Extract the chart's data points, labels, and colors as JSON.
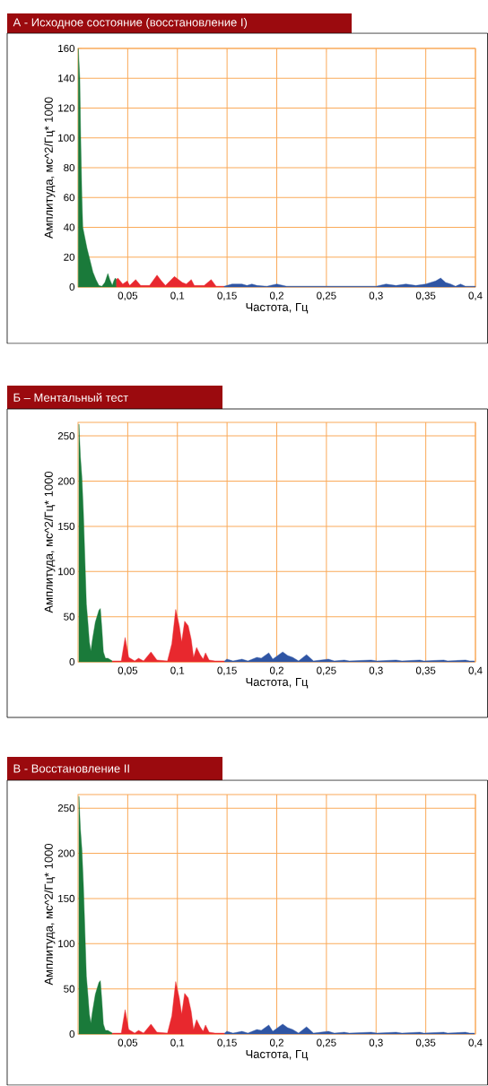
{
  "chart_data": [
    {
      "type": "area",
      "title": "А - Исходное состояние (восстановление I)",
      "xlabel": "Частота, Гц",
      "ylabel": "Амплитуда, мс^2/Гц* 1000",
      "xlim": [
        0,
        0.4
      ],
      "ylim": [
        0,
        160
      ],
      "grid": true,
      "xticks": [
        {
          "value": 0.05,
          "label": "0,05"
        },
        {
          "value": 0.1,
          "label": "0,1"
        },
        {
          "value": 0.15,
          "label": "0,15"
        },
        {
          "value": 0.2,
          "label": "0,2"
        },
        {
          "value": 0.25,
          "label": "0,25"
        },
        {
          "value": 0.3,
          "label": "0,3"
        },
        {
          "value": 0.35,
          "label": "0,35"
        },
        {
          "value": 0.4,
          "label": "0,4"
        }
      ],
      "yticks": [
        0,
        20,
        40,
        60,
        80,
        100,
        120,
        140,
        160
      ],
      "series": [
        {
          "color": "#1a7a3a",
          "x": [
            0.0003,
            0.0018,
            0.0027,
            0.0039,
            0.0048,
            0.0066,
            0.009,
            0.012,
            0.015,
            0.018,
            0.021,
            0.024,
            0.027,
            0.03,
            0.032,
            0.0345,
            0.036,
            0.0375,
            0.0387
          ],
          "values": [
            160,
            140,
            100,
            60,
            40,
            34,
            26,
            18,
            10,
            5,
            1,
            0.5,
            3,
            9,
            5,
            1,
            4,
            6,
            5
          ]
        },
        {
          "color": "#e8282e",
          "x": [
            0.0387,
            0.04,
            0.045,
            0.0495,
            0.052,
            0.058,
            0.063,
            0.072,
            0.0795,
            0.084,
            0.088,
            0.097,
            0.105,
            0.109,
            0.114,
            0.117,
            0.127,
            0.134,
            0.139,
            0.147
          ],
          "values": [
            5,
            6,
            2,
            4,
            1,
            5,
            1,
            1,
            8,
            4,
            1,
            7,
            3,
            2,
            5,
            1,
            1,
            5,
            0.5,
            0.5
          ]
        },
        {
          "color": "#2f55a4",
          "x": [
            0.147,
            0.15,
            0.155,
            0.165,
            0.17,
            0.175,
            0.18,
            0.19,
            0.2,
            0.21,
            0.3,
            0.31,
            0.32,
            0.33,
            0.34,
            0.35,
            0.36,
            0.365,
            0.37,
            0.375,
            0.38,
            0.385,
            0.39,
            0.4
          ],
          "values": [
            0.5,
            1,
            2,
            2,
            1,
            2,
            1,
            0.5,
            2,
            0.5,
            0.5,
            2,
            1,
            2,
            1,
            2,
            4,
            6,
            3,
            2,
            0.5,
            2,
            0.5,
            0.5
          ]
        }
      ]
    },
    {
      "type": "area",
      "title": "Б – Ментальный тест",
      "xlabel": "Частота, Гц",
      "ylabel": "Амплитуда, мс^2/Гц* 1000",
      "xlim": [
        0,
        0.4
      ],
      "ylim": [
        0,
        265
      ],
      "grid": true,
      "xticks": [
        {
          "value": 0.05,
          "label": "0,05"
        },
        {
          "value": 0.1,
          "label": "0,1"
        },
        {
          "value": 0.15,
          "label": "0,15"
        },
        {
          "value": 0.2,
          "label": "0,2"
        },
        {
          "value": 0.25,
          "label": "0,25"
        },
        {
          "value": 0.3,
          "label": "0,3"
        },
        {
          "value": 0.35,
          "label": "0,35"
        },
        {
          "value": 0.4,
          "label": "0,4"
        }
      ],
      "yticks": [
        0,
        50,
        100,
        150,
        200,
        250
      ],
      "series": [
        {
          "color": "#1a7a3a",
          "x": [
            0.0009,
            0.0024,
            0.0039,
            0.0054,
            0.0069,
            0.0084,
            0.0099,
            0.0114,
            0.0129,
            0.0144,
            0.0174,
            0.021,
            0.0225,
            0.024,
            0.0255,
            0.0276,
            0.03,
            0.033,
            0.0345
          ],
          "values": [
            263,
            227,
            204,
            166,
            115,
            64,
            44,
            22,
            12,
            24,
            44,
            57,
            59,
            37,
            11,
            4,
            4,
            2,
            1
          ]
        },
        {
          "color": "#e8282e",
          "x": [
            0.0345,
            0.0435,
            0.0474,
            0.051,
            0.057,
            0.0609,
            0.066,
            0.0734,
            0.0794,
            0.09,
            0.0944,
            0.0983,
            0.1019,
            0.1043,
            0.1073,
            0.1109,
            0.1139,
            0.1163,
            0.1193,
            0.1229,
            0.1259,
            0.1283,
            0.1319,
            0.1379,
            0.1475
          ],
          "values": [
            1,
            1,
            27,
            5,
            1,
            4,
            1,
            11,
            2,
            1,
            20,
            58,
            40,
            22,
            45,
            40,
            25,
            5,
            16,
            8,
            3,
            10,
            2,
            1,
            1
          ]
        },
        {
          "color": "#2f55a4",
          "x": [
            0.1475,
            0.1498,
            0.156,
            0.165,
            0.171,
            0.18,
            0.1844,
            0.192,
            0.196,
            0.206,
            0.211,
            0.216,
            0.222,
            0.23,
            0.237,
            0.252,
            0.258,
            0.268,
            0.273,
            0.295,
            0.301,
            0.32,
            0.326,
            0.344,
            0.348,
            0.368,
            0.372,
            0.39,
            0.394,
            0.399
          ],
          "values": [
            1,
            3,
            1,
            3,
            1,
            5,
            4,
            10,
            3,
            11,
            7,
            5,
            1,
            8,
            1,
            3,
            1,
            2,
            1,
            2,
            1,
            2,
            1,
            2,
            1,
            2,
            1,
            2,
            1,
            1
          ]
        }
      ]
    },
    {
      "type": "area",
      "title": "В - Восстановление II",
      "xlabel": "Частота, Гц",
      "ylabel": "Амплитуда, мс^2/Гц* 1000",
      "xlim": [
        0,
        0.4
      ],
      "ylim": [
        0,
        265
      ],
      "grid": true,
      "xticks": [
        {
          "value": 0.05,
          "label": "0,05"
        },
        {
          "value": 0.1,
          "label": "0,1"
        },
        {
          "value": 0.15,
          "label": "0,15"
        },
        {
          "value": 0.2,
          "label": "0,2"
        },
        {
          "value": 0.25,
          "label": "0,25"
        },
        {
          "value": 0.3,
          "label": "0,3"
        },
        {
          "value": 0.35,
          "label": "0,35"
        },
        {
          "value": 0.4,
          "label": "0,4"
        }
      ],
      "yticks": [
        0,
        50,
        100,
        150,
        200,
        250
      ],
      "series": [
        {
          "color": "#1a7a3a",
          "x": [
            0.0009,
            0.0024,
            0.0039,
            0.0054,
            0.0069,
            0.0084,
            0.0099,
            0.0114,
            0.0129,
            0.0144,
            0.0174,
            0.021,
            0.0225,
            0.024,
            0.0255,
            0.0276,
            0.03,
            0.033,
            0.0345
          ],
          "values": [
            263,
            227,
            204,
            166,
            115,
            64,
            44,
            22,
            12,
            24,
            44,
            57,
            59,
            37,
            11,
            4,
            4,
            2,
            1
          ]
        },
        {
          "color": "#e8282e",
          "x": [
            0.0345,
            0.0435,
            0.0474,
            0.051,
            0.057,
            0.0609,
            0.066,
            0.0734,
            0.0794,
            0.09,
            0.0944,
            0.0983,
            0.1019,
            0.1043,
            0.1073,
            0.1109,
            0.1139,
            0.1163,
            0.1193,
            0.1229,
            0.1259,
            0.1283,
            0.1319,
            0.1379,
            0.1475
          ],
          "values": [
            1,
            1,
            27,
            5,
            1,
            4,
            1,
            11,
            2,
            1,
            20,
            58,
            40,
            22,
            45,
            40,
            25,
            5,
            16,
            8,
            3,
            10,
            2,
            1,
            1
          ]
        },
        {
          "color": "#2f55a4",
          "x": [
            0.1475,
            0.1498,
            0.156,
            0.165,
            0.171,
            0.18,
            0.1844,
            0.192,
            0.196,
            0.206,
            0.211,
            0.216,
            0.222,
            0.23,
            0.237,
            0.252,
            0.258,
            0.268,
            0.273,
            0.295,
            0.301,
            0.32,
            0.326,
            0.344,
            0.348,
            0.368,
            0.372,
            0.39,
            0.394,
            0.399
          ],
          "values": [
            1,
            3,
            1,
            3,
            1,
            5,
            4,
            10,
            3,
            11,
            7,
            5,
            1,
            8,
            1,
            3,
            1,
            2,
            1,
            2,
            1,
            2,
            1,
            2,
            1,
            2,
            1,
            2,
            1,
            1
          ]
        }
      ]
    }
  ]
}
